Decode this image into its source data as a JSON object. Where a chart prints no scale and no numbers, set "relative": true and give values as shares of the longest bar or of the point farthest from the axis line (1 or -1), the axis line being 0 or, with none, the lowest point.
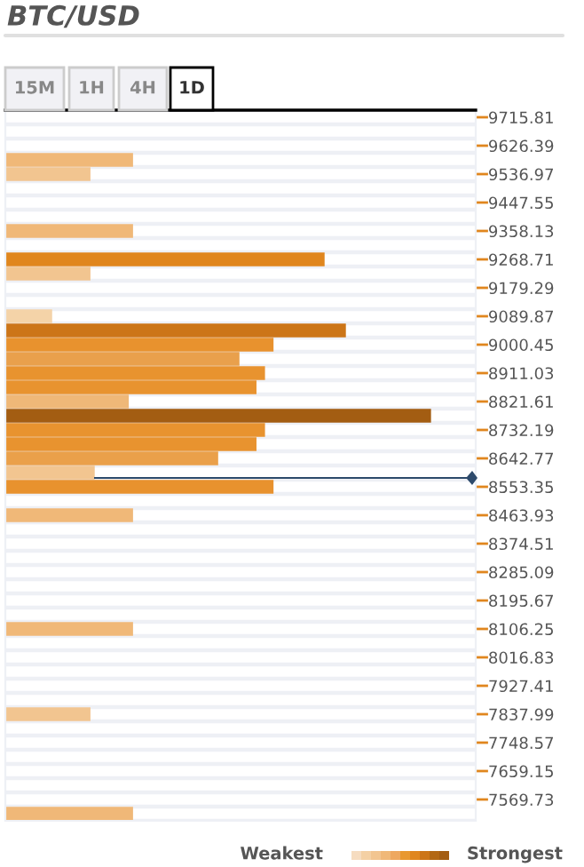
{
  "chart_data": {
    "type": "bar",
    "orientation": "horizontal",
    "relative": true,
    "title": "BTC/USD",
    "annotations": [
      "15M",
      "1H",
      "4H",
      "1D",
      "Weakest",
      "Strongest"
    ],
    "categories": [
      "9715.81",
      null,
      "9626.39",
      null,
      "9536.97",
      null,
      "9447.55",
      null,
      "9358.13",
      null,
      "9268.71",
      null,
      "9179.29",
      null,
      "9089.87",
      null,
      "9000.45",
      null,
      "8911.03",
      null,
      "8821.61",
      null,
      "8732.19",
      null,
      "8642.77",
      null,
      "8553.35",
      null,
      "8463.93",
      null,
      "8374.51",
      null,
      "8285.09",
      null,
      "8195.67",
      null,
      "8106.25",
      null,
      "8016.83",
      null,
      "7927.41",
      null,
      "7837.99",
      null,
      "7748.57",
      null,
      "7659.15",
      null,
      "7569.73",
      null
    ],
    "values": [
      null,
      null,
      null,
      0.3,
      0.2,
      null,
      null,
      null,
      0.3,
      null,
      0.75,
      0.2,
      null,
      null,
      0.11,
      0.8,
      0.63,
      0.55,
      0.61,
      0.59,
      0.29,
      1,
      0.61,
      0.59,
      0.5,
      0.21,
      0.63,
      null,
      0.3,
      null,
      null,
      null,
      null,
      null,
      null,
      null,
      0.3,
      null,
      null,
      null,
      null,
      null,
      0.2,
      null,
      null,
      null,
      null,
      null,
      null,
      0.3
    ],
    "colors": [
      null,
      null,
      null,
      "#f0b878",
      "#f2c590",
      null,
      null,
      null,
      "#f0b878",
      null,
      "#e0861e",
      "#f2c590",
      null,
      null,
      "#f4d3a8",
      "#cc7518",
      "#e8922e",
      "#e9a04c",
      "#e8932f",
      "#e8932f",
      "#efb878",
      "#a35d12",
      "#e8932f",
      "#e8932f",
      "#eaa04a",
      "#f2c590",
      "#e8922e",
      null,
      "#f0b878",
      null,
      null,
      null,
      null,
      null,
      null,
      null,
      "#f0b878",
      null,
      null,
      null,
      null,
      null,
      "#f2c590",
      null,
      null,
      null,
      null,
      null,
      null,
      "#f0b878"
    ],
    "grid": "y"
  }
}
